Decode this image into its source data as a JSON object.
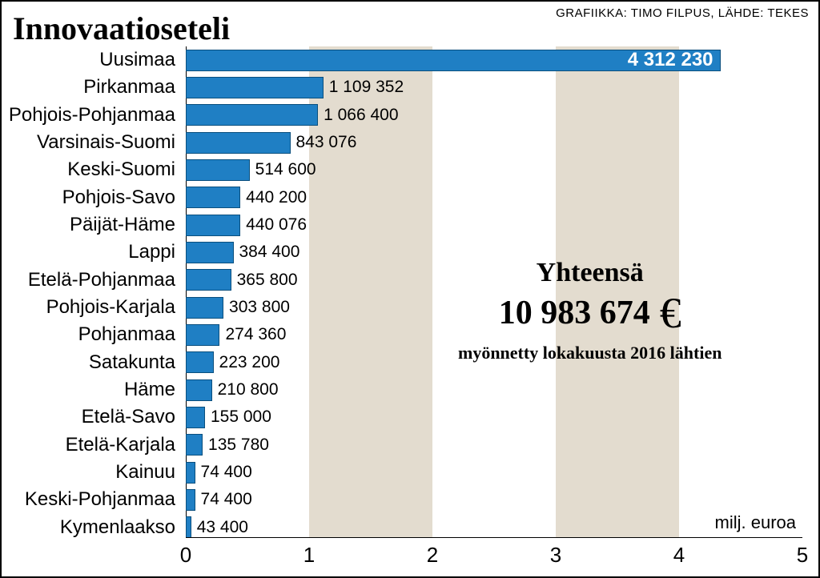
{
  "title": "Innovaatioseteli",
  "credit": "GRAFIIKKA: TIMO FILPUS, LÄHDE: TEKES",
  "unit_label": "milj. euroa",
  "chart": {
    "type": "bar",
    "orientation": "horizontal",
    "bar_color": "#1f7fc4",
    "bar_border_color": "#0a4f7e",
    "background_color": "#ffffff",
    "band_color": "#e3dccf",
    "xmin": 0,
    "xmax": 5,
    "xtick_step": 1,
    "xticks": [
      "0",
      "1",
      "2",
      "3",
      "4",
      "5"
    ],
    "label_fontsize": 24,
    "value_fontsize": 21,
    "bars": [
      {
        "label": "Uusimaa",
        "value": 4312230,
        "display": "4 312 230",
        "value_inside": true
      },
      {
        "label": "Pirkanmaa",
        "value": 1109352,
        "display": "1 109 352",
        "value_inside": false
      },
      {
        "label": "Pohjois-Pohjanmaa",
        "value": 1066400,
        "display": "1 066 400",
        "value_inside": false
      },
      {
        "label": "Varsinais-Suomi",
        "value": 843076,
        "display": "843 076",
        "value_inside": false
      },
      {
        "label": "Keski-Suomi",
        "value": 514600,
        "display": "514 600",
        "value_inside": false
      },
      {
        "label": "Pohjois-Savo",
        "value": 440200,
        "display": "440 200",
        "value_inside": false
      },
      {
        "label": "Päijät-Häme",
        "value": 440076,
        "display": "440 076",
        "value_inside": false
      },
      {
        "label": "Lappi",
        "value": 384400,
        "display": "384 400",
        "value_inside": false
      },
      {
        "label": "Etelä-Pohjanmaa",
        "value": 365800,
        "display": "365 800",
        "value_inside": false
      },
      {
        "label": "Pohjois-Karjala",
        "value": 303800,
        "display": "303 800",
        "value_inside": false
      },
      {
        "label": "Pohjanmaa",
        "value": 274360,
        "display": "274 360",
        "value_inside": false
      },
      {
        "label": "Satakunta",
        "value": 223200,
        "display": "223 200",
        "value_inside": false
      },
      {
        "label": "Häme",
        "value": 210800,
        "display": "210 800",
        "value_inside": false
      },
      {
        "label": "Etelä-Savo",
        "value": 155000,
        "display": "155 000",
        "value_inside": false
      },
      {
        "label": "Etelä-Karjala",
        "value": 135780,
        "display": "135 780",
        "value_inside": false
      },
      {
        "label": "Kainuu",
        "value": 74400,
        "display": "74 400",
        "value_inside": false
      },
      {
        "label": "Keski-Pohjanmaa",
        "value": 74400,
        "display": "74 400",
        "value_inside": false
      },
      {
        "label": "Kymenlaakso",
        "value": 43400,
        "display": "43 400",
        "value_inside": false
      }
    ]
  },
  "total": {
    "label": "Yhteensä",
    "amount": "10 983 674",
    "currency_symbol": "€",
    "subtext": "myönnetty lokakuusta 2016 lähtien"
  }
}
